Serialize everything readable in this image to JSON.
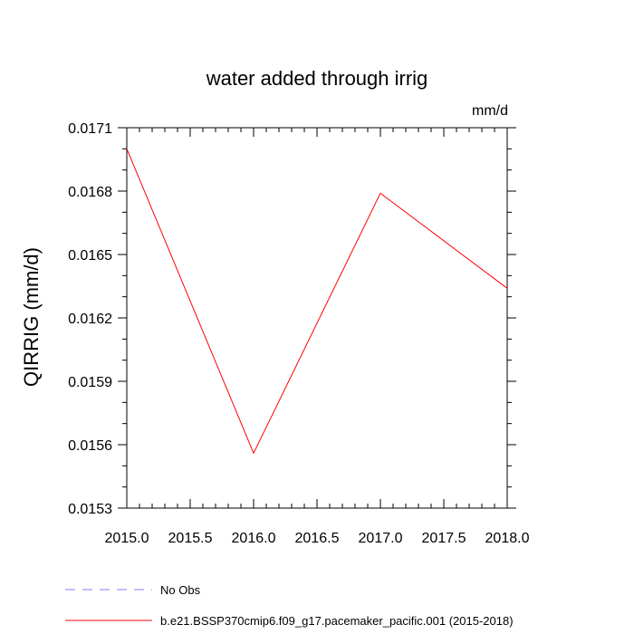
{
  "chart_data": {
    "type": "line",
    "title": "water added through irrig",
    "units_label": "mm/d",
    "ylabel": "QIRRIG  (mm/d)",
    "xlabel": "",
    "xlim": [
      2015.0,
      2018.0
    ],
    "ylim": [
      0.0153,
      0.0171
    ],
    "x_ticks": [
      "2015.0",
      "2015.5",
      "2016.0",
      "2016.5",
      "2017.0",
      "2017.5",
      "2018.0"
    ],
    "y_ticks": [
      "0.0153",
      "0.0156",
      "0.0159",
      "0.0162",
      "0.0165",
      "0.0168",
      "0.0171"
    ],
    "grid": false,
    "legend_position": "bottom",
    "series": [
      {
        "name": "b.e21.BSSP370cmip6.f09_g17.pacemaker_pacific.001 (2015-2018)",
        "color": "#ff0000",
        "dash": "solid",
        "x": [
          2015,
          2016,
          2017,
          2018
        ],
        "y": [
          0.017,
          0.01556,
          0.01679,
          0.01634
        ]
      }
    ],
    "legend": [
      {
        "label": "No Obs",
        "color": "#8080ff",
        "dash": "dashed"
      },
      {
        "label": "b.e21.BSSP370cmip6.f09_g17.pacemaker_pacific.001 (2015-2018)",
        "color": "#ff0000",
        "dash": "solid"
      }
    ]
  }
}
